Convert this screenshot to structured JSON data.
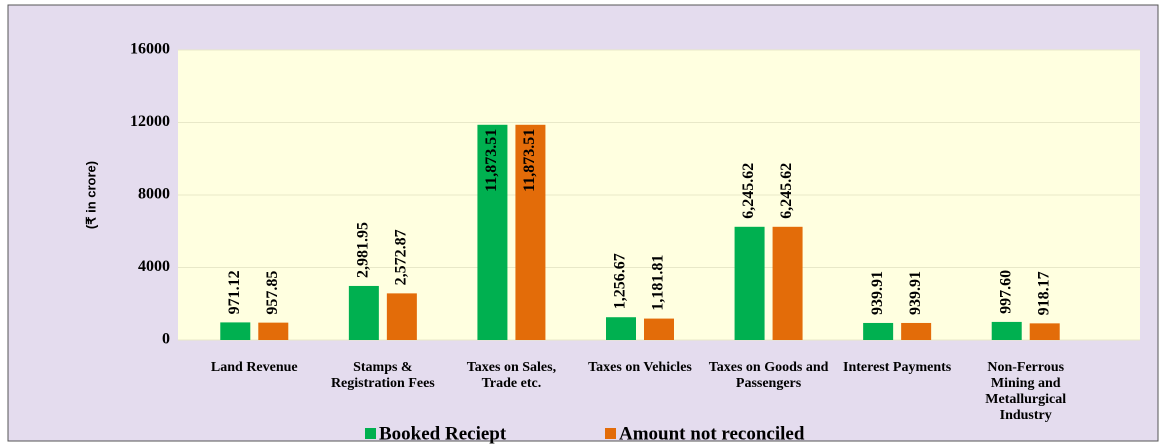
{
  "chart_data": {
    "type": "bar",
    "y_label": "(₹ in crore)",
    "categories": [
      "Land Revenue",
      "Stamps & Registration Fees",
      "Taxes on Sales, Trade etc.",
      "Taxes on Vehicles",
      "Taxes on Goods and Passengers",
      "Interest Payments",
      "Non-Ferrous Mining and Metallurgical Industry"
    ],
    "series": [
      {
        "name": "Booked Reciept",
        "color": "#00b050",
        "values": [
          971.12,
          2981.95,
          11873.51,
          1256.67,
          6245.62,
          939.91,
          997.6
        ],
        "value_labels": [
          "971.12",
          "2,981.95",
          "11,873.51",
          "1,256.67",
          "6,245.62",
          "939.91",
          "997.60"
        ]
      },
      {
        "name": "Amount not reconciled",
        "color": "#e36c09",
        "values": [
          957.85,
          2572.87,
          11873.51,
          1181.81,
          6245.62,
          939.91,
          918.17
        ],
        "value_labels": [
          "957.85",
          "2,572.87",
          "11,873.51",
          "1,181.81",
          "6,245.62",
          "939.91",
          "918.17"
        ]
      }
    ],
    "ylim": [
      0,
      16000
    ],
    "yticks": [
      0,
      4000,
      8000,
      12000,
      16000
    ],
    "grid": true,
    "legend": "bottom"
  }
}
